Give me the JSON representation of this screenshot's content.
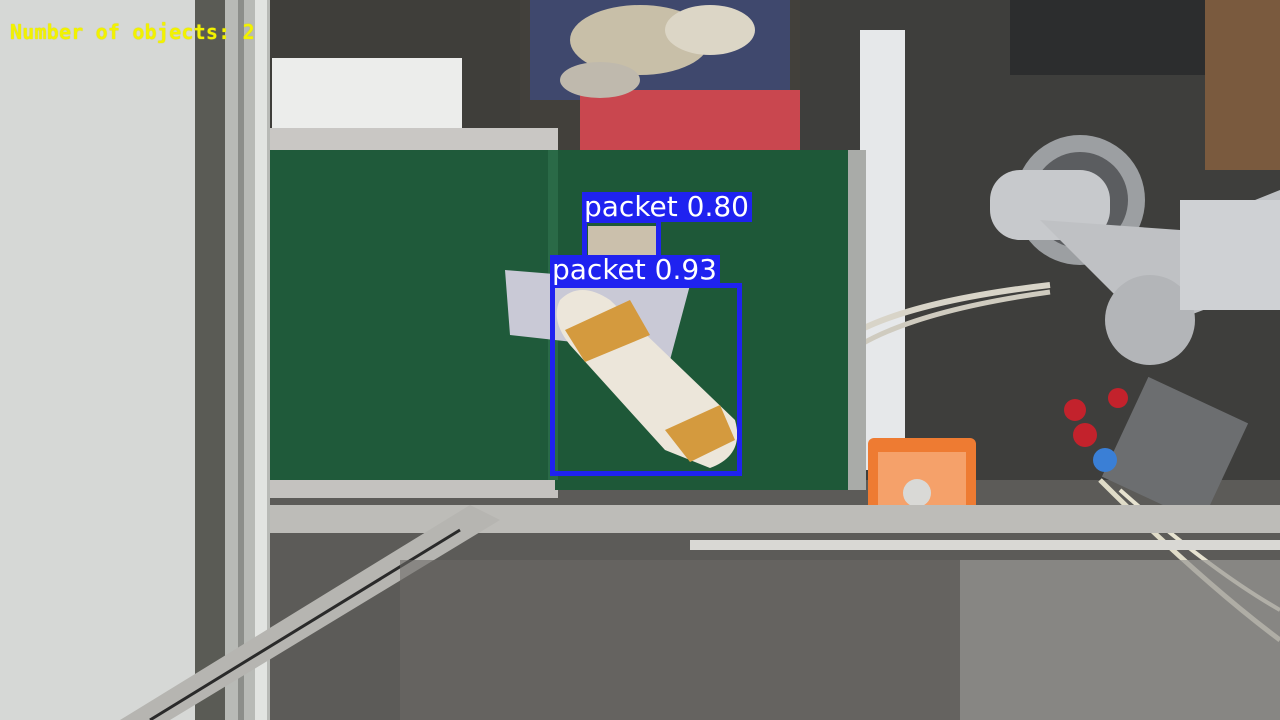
{
  "overlay": {
    "object_count_text": "Number of objects: 2",
    "text_color": "#f2f200"
  },
  "detections": [
    {
      "label": "packet 0.80",
      "class": "packet",
      "confidence": 0.8
    },
    {
      "label": "packet 0.93",
      "class": "packet",
      "confidence": 0.93
    }
  ],
  "colors": {
    "bbox": "#1f22f0",
    "conveyor_belt": "#1f5a3a"
  }
}
